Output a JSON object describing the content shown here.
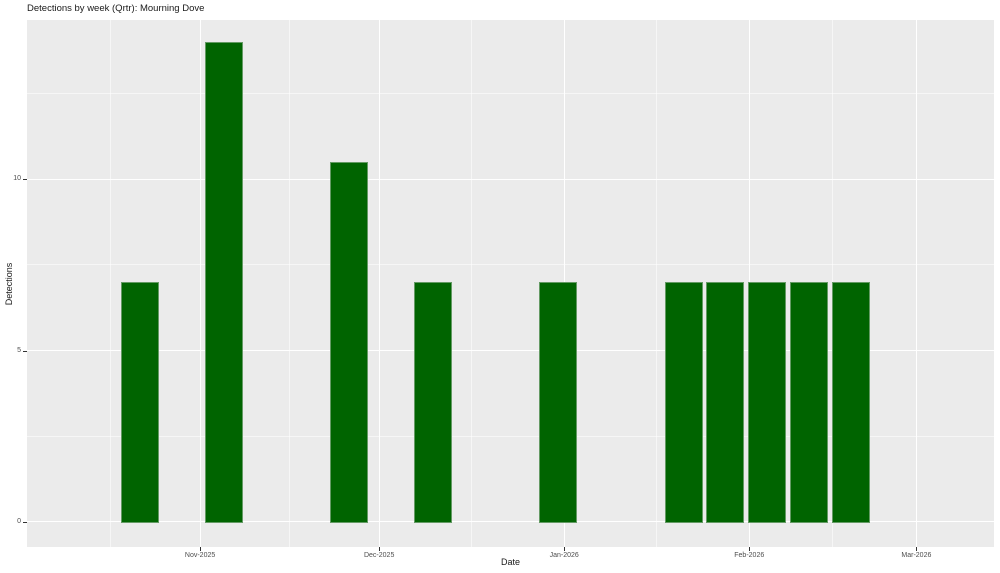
{
  "page": {
    "title": "Detections by week (Qrtr): Mourning Dove"
  },
  "chart_data": {
    "type": "bar",
    "title": "Detections by week (Qrtr): Mourning Dove",
    "xlabel": "Date",
    "ylabel": "Detections",
    "x_unit": "week",
    "x": [
      "2025-10-22",
      "2025-11-05",
      "2025-11-26",
      "2025-12-10",
      "2025-12-31",
      "2026-01-21",
      "2026-01-28",
      "2026-02-04",
      "2026-02-11",
      "2026-02-18"
    ],
    "values": [
      7,
      14,
      10.5,
      7,
      7,
      7,
      7,
      7,
      7,
      7
    ],
    "x_ticks": [
      {
        "value": "2025-11-01",
        "label": "Nov-2025"
      },
      {
        "value": "2025-12-01",
        "label": "Dec-2025"
      },
      {
        "value": "2026-01-01",
        "label": "Jan-2026"
      },
      {
        "value": "2026-02-01",
        "label": "Feb-2026"
      },
      {
        "value": "2026-03-01",
        "label": "Mar-2026"
      }
    ],
    "y_ticks": [
      {
        "value": 0,
        "label": "0"
      },
      {
        "value": 5,
        "label": "5"
      },
      {
        "value": 10,
        "label": "10"
      }
    ],
    "x_domain": [
      "2025-10-03",
      "2026-03-14"
    ],
    "y_domain": [
      -0.73,
      14.64
    ],
    "bar_width_days": 6.4,
    "grid": "major-and-minor",
    "legend": false,
    "colors": {
      "bar_fill": "#006400",
      "bar_edge": "#649a64",
      "panel_bg": "#EBEBEB",
      "grid_major": "#FFFFFF",
      "grid_minor": "rgba(255,255,255,0.55)",
      "tick_text": "#4d4d4d",
      "title_text": "#1a1a1a",
      "background": "#FFFFFF"
    }
  }
}
